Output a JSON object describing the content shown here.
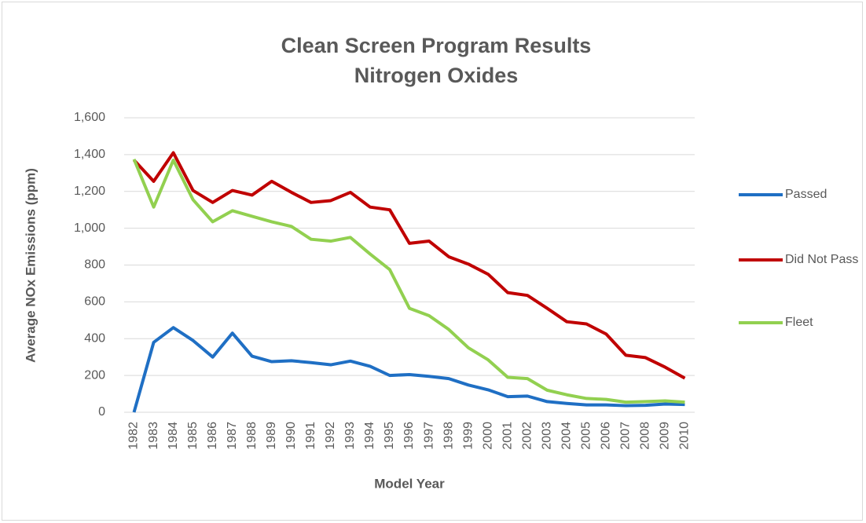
{
  "chart_data": {
    "type": "line",
    "title": "Clean Screen Program Results",
    "subtitle": "Nitrogen Oxides",
    "xlabel": "Model Year",
    "ylabel": "Average NOx Emissions (ppm)",
    "categories": [
      "1982",
      "1983",
      "1984",
      "1985",
      "1986",
      "1987",
      "1988",
      "1989",
      "1990",
      "1991",
      "1992",
      "1993",
      "1994",
      "1995",
      "1996",
      "1997",
      "1998",
      "1999",
      "2000",
      "2001",
      "2002",
      "2003",
      "2004",
      "2005",
      "2006",
      "2007",
      "2008",
      "2009",
      "2010"
    ],
    "series": [
      {
        "name": "Passed",
        "color": "#1f6fc4",
        "values": [
          0,
          380,
          460,
          390,
          300,
          430,
          305,
          275,
          280,
          270,
          258,
          278,
          250,
          200,
          205,
          195,
          183,
          148,
          122,
          85,
          88,
          58,
          48,
          40,
          40,
          36,
          38,
          45,
          42
        ]
      },
      {
        "name": "Did Not Pass",
        "color": "#c00000",
        "values": [
          1370,
          1255,
          1410,
          1205,
          1140,
          1205,
          1180,
          1255,
          1195,
          1140,
          1150,
          1195,
          1115,
          1100,
          918,
          930,
          845,
          805,
          750,
          650,
          635,
          565,
          492,
          480,
          425,
          310,
          297,
          245,
          185
        ]
      },
      {
        "name": "Fleet",
        "color": "#92d050",
        "values": [
          1375,
          1115,
          1370,
          1155,
          1035,
          1095,
          1065,
          1035,
          1010,
          940,
          930,
          950,
          860,
          775,
          565,
          525,
          450,
          350,
          285,
          190,
          183,
          120,
          95,
          75,
          70,
          55,
          58,
          62,
          55
        ]
      }
    ],
    "ylim": [
      0,
      1600
    ],
    "yticks": [
      0,
      {
        "value": 200,
        "label": "200"
      },
      {
        "value": 400,
        "label": "400"
      },
      {
        "value": 600,
        "label": "600"
      },
      {
        "value": 800,
        "label": "800"
      },
      {
        "value": 1000,
        "label": "1,000"
      },
      {
        "value": 1200,
        "label": "1,200"
      },
      {
        "value": 1400,
        "label": "1,400"
      },
      {
        "value": 1600,
        "label": "1,600"
      }
    ],
    "grid": true,
    "legend": "right"
  }
}
